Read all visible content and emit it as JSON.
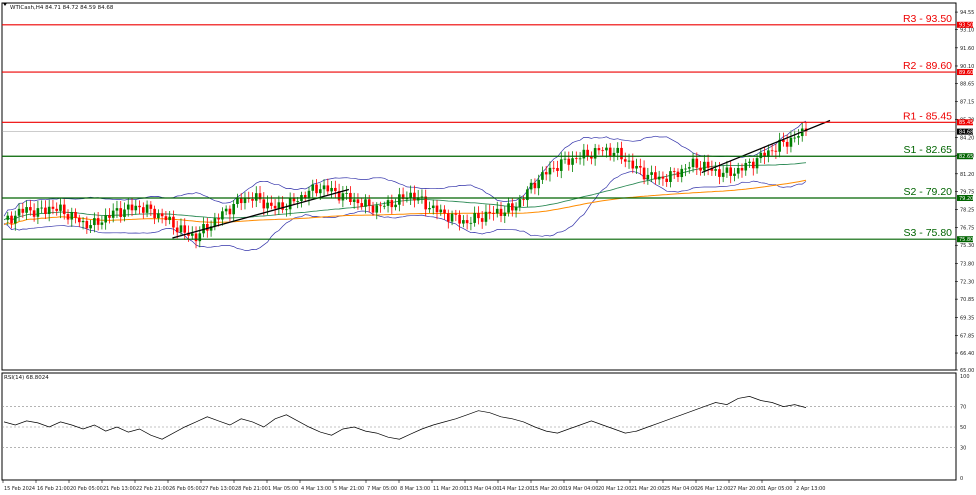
{
  "header": {
    "symbol_info": "WTICash,H4  84.71 84.72 84.59 84.68"
  },
  "rsi_header": "RSI(14) 68.8024",
  "colors": {
    "bull": "#008000",
    "bear": "#ff0000",
    "support": "#006400",
    "resistance": "#ee0000",
    "bb": "#3333aa",
    "ma_fast": "#2e8b57",
    "ma_slow": "#ff8c00",
    "trend": "#000000",
    "rsi": "#000000"
  },
  "chart_data": [
    {
      "type": "candlestick",
      "title": "",
      "price_axis_ticks": [
        "94.55",
        "93.10",
        "91.60",
        "90.10",
        "88.65",
        "87.15",
        "85.70",
        "84.20",
        "82.70",
        "81.20",
        "79.75",
        "78.25",
        "76.75",
        "75.30",
        "73.80",
        "72.30",
        "70.85",
        "69.35",
        "67.85",
        "66.40",
        "65.00"
      ],
      "ylim": [
        65.0,
        95.3
      ],
      "current_price": "84.68",
      "x_labels": [
        "15 Feb 2024",
        "16 Feb 21:00",
        "20 Feb 05:00",
        "21 Feb 13:00",
        "22 Feb 21:00",
        "26 Feb 05:00",
        "27 Feb 13:00",
        "28 Feb 21:00",
        "1 Mar 05:00",
        "4 Mar 13:00",
        "5 Mar 21:00",
        "7 Mar 05:00",
        "8 Mar 13:00",
        "11 Mar 20:00",
        "13 Mar 04:00",
        "14 Mar 12:00",
        "15 Mar 20:00",
        "19 Mar 04:00",
        "20 Mar 12:00",
        "21 Mar 20:00",
        "25 Mar 04:00",
        "26 Mar 12:00",
        "27 Mar 20:00",
        "1 Apr 05:00",
        "2 Apr 13:00"
      ],
      "close_path": [
        77.2,
        77.8,
        78.3,
        78.0,
        78.4,
        78.2,
        77.7,
        77.1,
        77.0,
        77.6,
        78.1,
        78.3,
        78.5,
        78.1,
        77.7,
        77.0,
        76.3,
        76.0,
        76.8,
        77.6,
        78.4,
        79.0,
        79.3,
        78.8,
        78.4,
        78.6,
        79.1,
        79.7,
        80.1,
        79.8,
        79.4,
        79.0,
        78.6,
        78.4,
        78.7,
        79.0,
        79.5,
        78.9,
        78.3,
        77.9,
        77.5,
        77.2,
        77.6,
        77.9,
        78.1,
        78.3,
        79.3,
        80.5,
        81.3,
        81.9,
        82.3,
        82.6,
        82.9,
        83.2,
        83.0,
        82.4,
        81.6,
        81.1,
        80.8,
        81.0,
        81.5,
        82.0,
        81.8,
        81.4,
        81.2,
        81.5,
        82.0,
        82.6,
        83.2,
        83.7,
        84.2,
        84.7
      ],
      "levels": [
        {
          "label": "R3 - 93.50",
          "value": 93.5,
          "kind": "resistance",
          "tag": "93.50"
        },
        {
          "label": "R2 - 89.60",
          "value": 89.6,
          "kind": "resistance",
          "tag": "89.60"
        },
        {
          "label": "R1 - 85.45",
          "value": 85.45,
          "kind": "resistance",
          "tag": "85.45"
        },
        {
          "label": "S1 - 82.65",
          "value": 82.65,
          "kind": "support",
          "tag": "82.65"
        },
        {
          "label": "S2 - 79.20",
          "value": 79.2,
          "kind": "support",
          "tag": "79.20"
        },
        {
          "label": "S3 - 75.80",
          "value": 75.8,
          "kind": "support",
          "tag": "75.80"
        }
      ]
    },
    {
      "type": "line",
      "title": "RSI(14)",
      "ylim": [
        0,
        100
      ],
      "axis_ticks": [
        "100",
        "70",
        "50",
        "30",
        "0"
      ],
      "values": [
        55,
        52,
        56,
        54,
        50,
        55,
        52,
        48,
        52,
        46,
        50,
        45,
        48,
        42,
        38,
        44,
        50,
        55,
        60,
        56,
        52,
        58,
        55,
        50,
        58,
        62,
        56,
        50,
        45,
        42,
        48,
        50,
        46,
        44,
        40,
        38,
        43,
        48,
        52,
        55,
        58,
        62,
        66,
        64,
        60,
        58,
        55,
        50,
        46,
        44,
        48,
        52,
        56,
        52,
        48,
        44,
        46,
        50,
        54,
        58,
        62,
        66,
        70,
        74,
        72,
        78,
        80,
        76,
        74,
        70,
        72,
        69
      ]
    }
  ]
}
